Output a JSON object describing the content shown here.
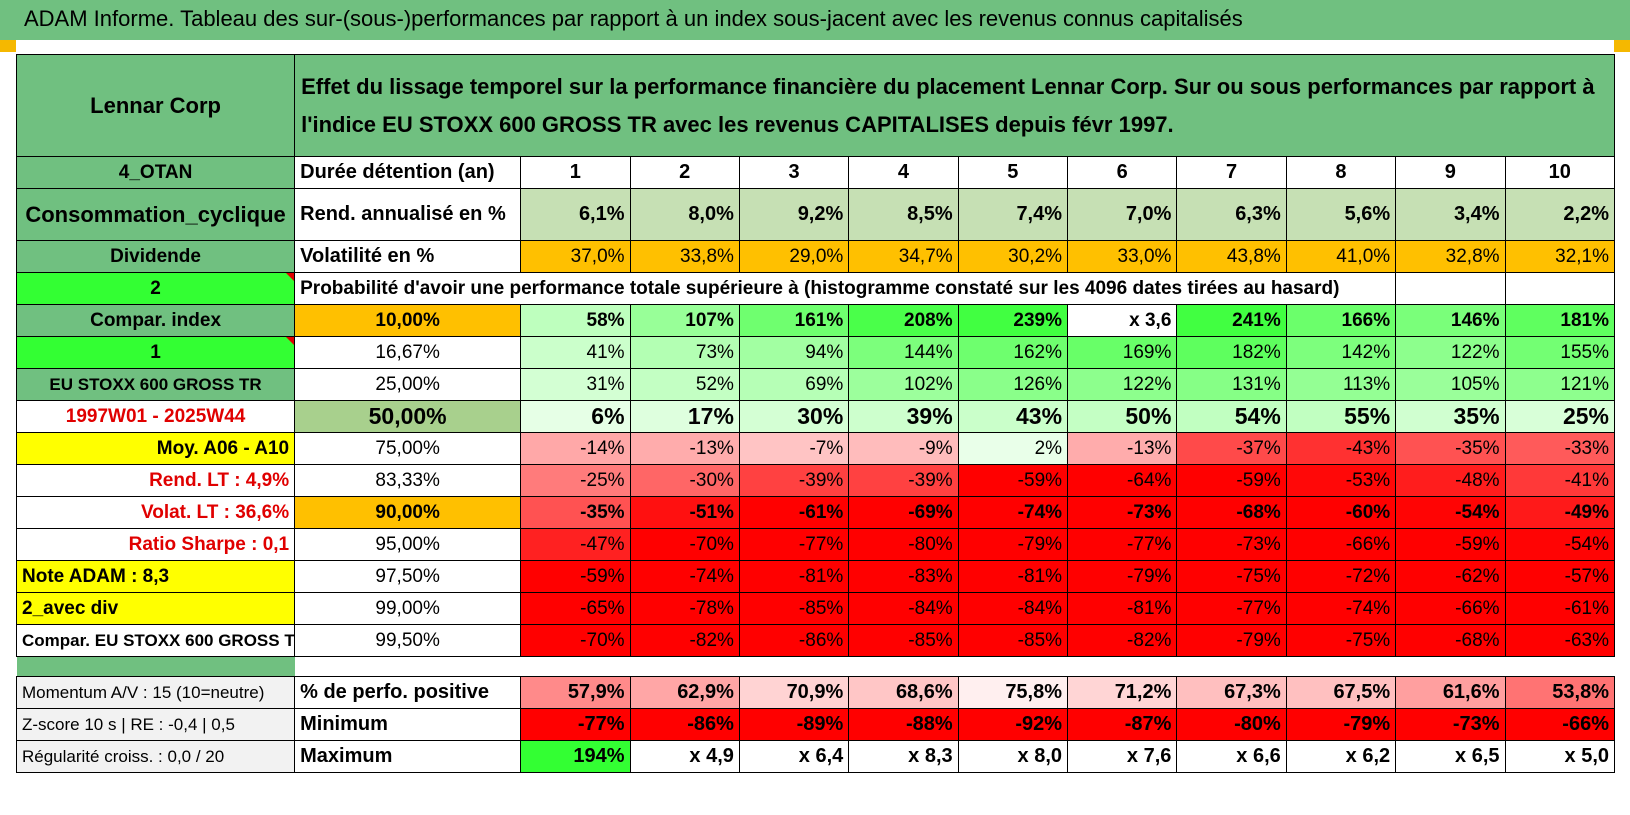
{
  "header": {
    "title": "ADAM Informe. Tableau des sur-(sous-)performances par rapport à un index sous-jacent avec les revenus connus capitalisés"
  },
  "top": {
    "company": "Lennar Corp",
    "description": "Effet du lissage temporel sur la performance financière du placement Lennar Corp. Sur ou sous performances par rapport à l'indice EU STOXX 600 GROSS TR avec les revenus CAPITALISES depuis févr 1997."
  },
  "rows": [
    {
      "side": "4_OTAN",
      "label": "Durée détention (an)",
      "cells": [
        "1",
        "2",
        "3",
        "4",
        "5",
        "6",
        "7",
        "8",
        "9",
        "10"
      ]
    },
    {
      "side": "Consommation_cyclique",
      "label": "Rend. annualisé en %",
      "cells": [
        "6,1%",
        "8,0%",
        "9,2%",
        "8,5%",
        "7,4%",
        "7,0%",
        "6,3%",
        "5,6%",
        "3,4%",
        "2,2%"
      ]
    },
    {
      "side": "Dividende",
      "label": "Volatilité en %",
      "cells": [
        "37,0%",
        "33,8%",
        "29,0%",
        "34,7%",
        "30,2%",
        "33,0%",
        "43,8%",
        "41,0%",
        "32,8%",
        "32,1%"
      ]
    },
    {
      "side": "2",
      "label": "Probabilité d'avoir une performance totale supérieure à (histogramme constaté sur les 4096 dates tirées au hasard)",
      "cells": []
    },
    {
      "side": "Compar. index",
      "label": "10,00%",
      "cells": [
        "58%",
        "107%",
        "161%",
        "208%",
        "239%",
        "x 3,6",
        "241%",
        "166%",
        "146%",
        "181%"
      ]
    },
    {
      "side": "1",
      "label": "16,67%",
      "cells": [
        "41%",
        "73%",
        "94%",
        "144%",
        "162%",
        "169%",
        "182%",
        "142%",
        "122%",
        "155%"
      ]
    },
    {
      "side": "EU STOXX 600 GROSS TR",
      "label": "25,00%",
      "cells": [
        "31%",
        "52%",
        "69%",
        "102%",
        "126%",
        "122%",
        "131%",
        "113%",
        "105%",
        "121%"
      ]
    },
    {
      "side": "1997W01 - 2025W44",
      "label": "50,00%",
      "cells": [
        "6%",
        "17%",
        "30%",
        "39%",
        "43%",
        "50%",
        "54%",
        "55%",
        "35%",
        "25%"
      ]
    },
    {
      "side": "Moy. A06 - A10",
      "label": "75,00%",
      "cells": [
        "-14%",
        "-13%",
        "-7%",
        "-9%",
        "2%",
        "-13%",
        "-37%",
        "-43%",
        "-35%",
        "-33%"
      ]
    },
    {
      "side": "Rend. LT :    4,9%",
      "label": "83,33%",
      "cells": [
        "-25%",
        "-30%",
        "-39%",
        "-39%",
        "-59%",
        "-64%",
        "-59%",
        "-53%",
        "-48%",
        "-41%"
      ]
    },
    {
      "side": "Volat. LT :    36,6%",
      "label": "90,00%",
      "cells": [
        "-35%",
        "-51%",
        "-61%",
        "-69%",
        "-74%",
        "-73%",
        "-68%",
        "-60%",
        "-54%",
        "-49%"
      ]
    },
    {
      "side": "Ratio Sharpe :     0,1",
      "label": "95,00%",
      "cells": [
        "-47%",
        "-70%",
        "-77%",
        "-80%",
        "-79%",
        "-77%",
        "-73%",
        "-66%",
        "-59%",
        "-54%"
      ]
    },
    {
      "side": "Note ADAM : 8,3",
      "label": "97,50%",
      "cells": [
        "-59%",
        "-74%",
        "-81%",
        "-83%",
        "-81%",
        "-79%",
        "-75%",
        "-72%",
        "-62%",
        "-57%"
      ]
    },
    {
      "side": "2_avec div",
      "label": "99,00%",
      "cells": [
        "-65%",
        "-78%",
        "-85%",
        "-84%",
        "-84%",
        "-81%",
        "-77%",
        "-74%",
        "-66%",
        "-61%"
      ]
    },
    {
      "side": "Compar. EU STOXX 600 GROSS TR",
      "label": "99,50%",
      "cells": [
        "-70%",
        "-82%",
        "-86%",
        "-85%",
        "-85%",
        "-82%",
        "-79%",
        "-75%",
        "-68%",
        "-63%"
      ]
    }
  ],
  "bottom": [
    {
      "side": "Momentum A/V : 15 (10=neutre)",
      "label": "% de perfo. positive",
      "cells": [
        "57,9%",
        "62,9%",
        "70,9%",
        "68,6%",
        "75,8%",
        "71,2%",
        "67,3%",
        "67,5%",
        "61,6%",
        "53,8%"
      ]
    },
    {
      "side": "Z-score 10 s | RE : -0,4 | 0,5",
      "label": "Minimum",
      "cells": [
        "-77%",
        "-86%",
        "-89%",
        "-88%",
        "-92%",
        "-87%",
        "-80%",
        "-79%",
        "-73%",
        "-66%"
      ]
    },
    {
      "side": "Régularité croiss. : 0,0 / 20",
      "label": "Maximum",
      "cells": [
        "194%",
        "x 4,9",
        "x 6,4",
        "x 8,3",
        "x 8,0",
        "x 7,6",
        "x 6,6",
        "x 6,2",
        "x 6,5",
        "x 5,0"
      ]
    }
  ],
  "colors": {
    "header_green": "#70c080",
    "bright_green": "#33ff33",
    "orange": "#ffc000",
    "yellow": "#ffff00",
    "red": "#ff0000"
  }
}
